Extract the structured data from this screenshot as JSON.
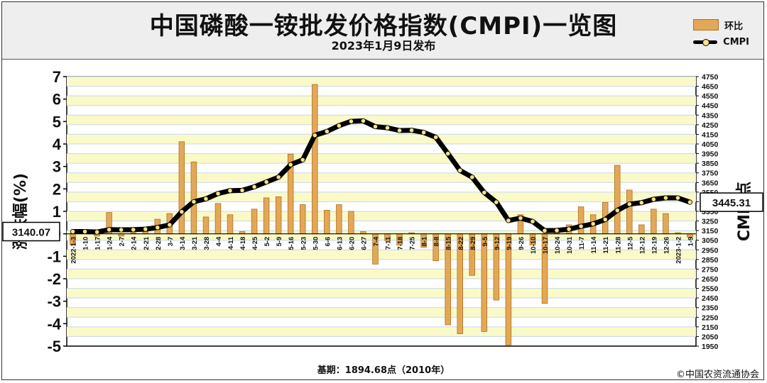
{
  "header": {
    "title": "中国磷酸一铵批发价格指数(CMPI)一览图",
    "subtitle": "2023年1月9日发布"
  },
  "legend": {
    "bar_label": "环比",
    "line_label": "CMPI"
  },
  "footer": {
    "base_note": "基期：1894.68点（2010年）",
    "copyright": "©中国农资流通协会"
  },
  "callouts": {
    "left_value": "3140.07",
    "right_value": "3445.31"
  },
  "colors": {
    "bar": "#e3a857",
    "bar_edge": "#b07020",
    "band": "#fafac8",
    "line": "#000000",
    "marker": "#f5e28a"
  },
  "chart_data": {
    "type": "bar",
    "title": "中国磷酸一铵批发价格指数(CMPI)一览图",
    "ylabel": "涨跌幅(%)",
    "y2label": "CMPI点",
    "ylim": [
      -5,
      7
    ],
    "y2lim": [
      1950,
      4750
    ],
    "yticks": [
      "7",
      "6",
      "5",
      "4",
      "3",
      "2",
      "1",
      "0",
      "-1",
      "-2",
      "-3",
      "-4",
      "-5"
    ],
    "y2ticks": [
      "4750",
      "4650",
      "4550",
      "4450",
      "4350",
      "4250",
      "4150",
      "4050",
      "3950",
      "3850",
      "3750",
      "3650",
      "3550",
      "3450",
      "3350",
      "3250",
      "3150",
      "3050",
      "2950",
      "2850",
      "2750",
      "2650",
      "2550",
      "2450",
      "2350",
      "2250",
      "2150",
      "2050",
      "1950"
    ],
    "categories": [
      "2022-1-3",
      "1-10",
      "1-17",
      "1-24",
      "2-7",
      "2-14",
      "2-21",
      "2-28",
      "3-7",
      "3-14",
      "3-21",
      "3-28",
      "4-4",
      "4-11",
      "4-18",
      "4-25",
      "5-2",
      "5-9",
      "5-16",
      "5-23",
      "5-30",
      "6-6",
      "6-13",
      "6-20",
      "6-27",
      "7-4",
      "7-11",
      "7-18",
      "7-25",
      "8-1",
      "8-8",
      "8-15",
      "8-22",
      "8-29",
      "9-5",
      "9-12",
      "9-19",
      "9-26",
      "10-10",
      "10-17",
      "10-24",
      "10-31",
      "11-7",
      "11-14",
      "11-21",
      "11-28",
      "12-5",
      "12-12",
      "12-19",
      "12-26",
      "2023-1-2",
      "1-9"
    ],
    "series": [
      {
        "name": "环比",
        "values": [
          -0.5,
          0.15,
          -0.1,
          0.95,
          -0.1,
          0.05,
          0.1,
          0.65,
          0.9,
          4.1,
          3.2,
          0.75,
          1.35,
          0.85,
          0.1,
          1.1,
          1.6,
          1.65,
          3.55,
          1.3,
          6.65,
          1.05,
          1.3,
          1.0,
          0.1,
          -1.35,
          -0.3,
          -0.5,
          0.05,
          -0.6,
          -1.2,
          -4.05,
          -4.45,
          -1.85,
          -4.35,
          -2.95,
          -4.95,
          0.85,
          -0.5,
          -3.1,
          0.05,
          0.4,
          1.2,
          0.85,
          1.4,
          3.05,
          1.95,
          0.4,
          1.1,
          0.9,
          0.05,
          -0.15
        ]
      },
      {
        "name": "CMPI",
        "values": [
          3140,
          3140,
          3135,
          3160,
          3158,
          3160,
          3165,
          3182,
          3210,
          3345,
          3450,
          3480,
          3535,
          3565,
          3568,
          3605,
          3655,
          3705,
          3835,
          3885,
          4140,
          4180,
          4240,
          4285,
          4290,
          4230,
          4218,
          4190,
          4192,
          4170,
          4120,
          3950,
          3775,
          3705,
          3545,
          3445,
          3255,
          3280,
          3245,
          3150,
          3152,
          3165,
          3195,
          3220,
          3265,
          3360,
          3425,
          3440,
          3475,
          3490,
          3490,
          3445
        ]
      }
    ],
    "grid": true
  }
}
